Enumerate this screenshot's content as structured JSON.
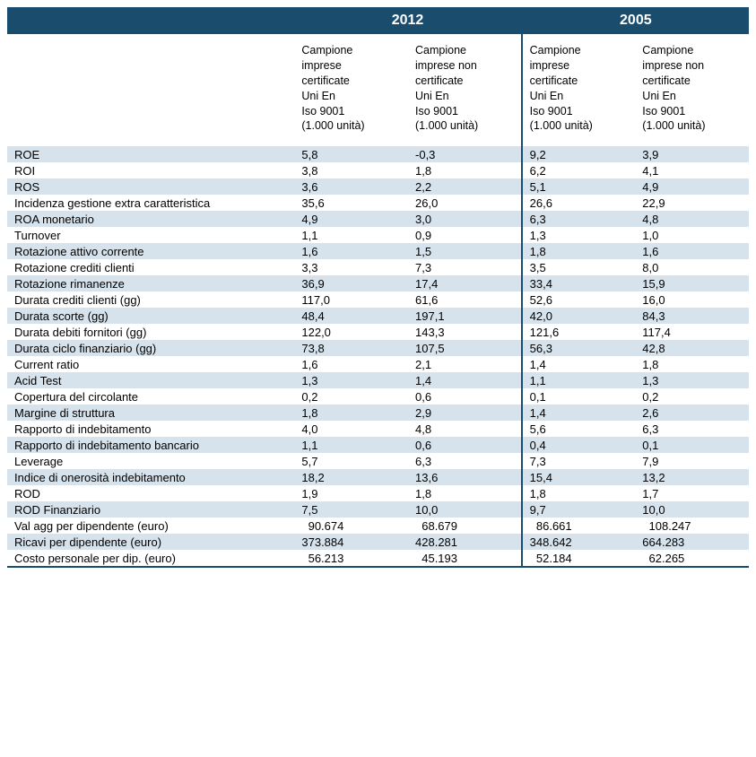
{
  "header": {
    "year1": "2012",
    "year2": "2005"
  },
  "subheaders": {
    "cert": "Campione\nimprese\ncertificate\nUni En\nIso 9001\n(1.000 unità)",
    "noncert": "Campione\nimprese non\ncertificate\nUni En\nIso 9001\n(1.000 unità)"
  },
  "colors": {
    "header_bg": "#1a4d6d",
    "header_text": "#ffffff",
    "stripe_bg": "#d6e3ed",
    "row_bg": "#ffffff",
    "text": "#000000"
  },
  "rows": [
    {
      "label": "ROE",
      "v2012c": "5,8",
      "v2012n": "-0,3",
      "v2005c": "9,2",
      "v2005n": "3,9",
      "stripe": true
    },
    {
      "label": "ROI",
      "v2012c": "3,8",
      "v2012n": "1,8",
      "v2005c": "6,2",
      "v2005n": "4,1",
      "stripe": false
    },
    {
      "label": "ROS",
      "v2012c": "3,6",
      "v2012n": "2,2",
      "v2005c": "5,1",
      "v2005n": "4,9",
      "stripe": true
    },
    {
      "label": "Incidenza gestione extra caratteristica",
      "v2012c": "35,6",
      "v2012n": "26,0",
      "v2005c": "26,6",
      "v2005n": "22,9",
      "stripe": false
    },
    {
      "label": "ROA monetario",
      "v2012c": "4,9",
      "v2012n": "3,0",
      "v2005c": "6,3",
      "v2005n": "4,8",
      "stripe": true
    },
    {
      "label": "Turnover",
      "v2012c": "1,1",
      "v2012n": "0,9",
      "v2005c": "1,3",
      "v2005n": "1,0",
      "stripe": false
    },
    {
      "label": "Rotazione attivo corrente",
      "v2012c": "1,6",
      "v2012n": "1,5",
      "v2005c": "1,8",
      "v2005n": "1,6",
      "stripe": true
    },
    {
      "label": "Rotazione crediti clienti",
      "v2012c": "3,3",
      "v2012n": "7,3",
      "v2005c": "3,5",
      "v2005n": "8,0",
      "stripe": false
    },
    {
      "label": "Rotazione rimanenze",
      "v2012c": "36,9",
      "v2012n": "17,4",
      "v2005c": "33,4",
      "v2005n": "15,9",
      "stripe": true
    },
    {
      "label": "Durata crediti clienti (gg)",
      "v2012c": "117,0",
      "v2012n": "61,6",
      "v2005c": "52,6",
      "v2005n": "16,0",
      "stripe": false
    },
    {
      "label": "Durata scorte (gg)",
      "v2012c": "48,4",
      "v2012n": "197,1",
      "v2005c": "42,0",
      "v2005n": "84,3",
      "stripe": true
    },
    {
      "label": "Durata debiti fornitori (gg)",
      "v2012c": "122,0",
      "v2012n": "143,3",
      "v2005c": "121,6",
      "v2005n": "117,4",
      "stripe": false
    },
    {
      "label": "Durata ciclo finanziario (gg)",
      "v2012c": "73,8",
      "v2012n": "107,5",
      "v2005c": "56,3",
      "v2005n": "42,8",
      "stripe": true
    },
    {
      "label": "Current ratio",
      "v2012c": "1,6",
      "v2012n": "2,1",
      "v2005c": "1,4",
      "v2005n": "1,8",
      "stripe": false
    },
    {
      "label": "Acid Test",
      "v2012c": "1,3",
      "v2012n": "1,4",
      "v2005c": "1,1",
      "v2005n": "1,3",
      "stripe": true
    },
    {
      "label": "Copertura del circolante",
      "v2012c": "0,2",
      "v2012n": "0,6",
      "v2005c": "0,1",
      "v2005n": "0,2",
      "stripe": false
    },
    {
      "label": "Margine di struttura",
      "v2012c": "1,8",
      "v2012n": "2,9",
      "v2005c": "1,4",
      "v2005n": "2,6",
      "stripe": true
    },
    {
      "label": "Rapporto di indebitamento",
      "v2012c": "4,0",
      "v2012n": "4,8",
      "v2005c": "5,6",
      "v2005n": "6,3",
      "stripe": false
    },
    {
      "label": "Rapporto di indebitamento bancario",
      "v2012c": "1,1",
      "v2012n": "0,6",
      "v2005c": "0,4",
      "v2005n": "0,1",
      "stripe": true
    },
    {
      "label": "Leverage",
      "v2012c": "5,7",
      "v2012n": "6,3",
      "v2005c": "7,3",
      "v2005n": "7,9",
      "stripe": false
    },
    {
      "label": "Indice di onerosità indebitamento",
      "v2012c": "18,2",
      "v2012n": "13,6",
      "v2005c": "15,4",
      "v2005n": "13,2",
      "stripe": true
    },
    {
      "label": "ROD",
      "v2012c": "1,9",
      "v2012n": "1,8",
      "v2005c": "1,8",
      "v2005n": "1,7",
      "stripe": false
    },
    {
      "label": "ROD Finanziario",
      "v2012c": "7,5",
      "v2012n": "10,0",
      "v2005c": "9,7",
      "v2005n": "10,0",
      "stripe": true
    },
    {
      "label": "Val agg per dipendente (euro)",
      "v2012c": "  90.674",
      "v2012n": "  68.679",
      "v2005c": "  86.661",
      "v2005n": "  108.247",
      "stripe": false
    },
    {
      "label": "Ricavi per dipendente (euro)",
      "v2012c": "373.884",
      "v2012n": "428.281",
      "v2005c": "348.642",
      "v2005n": "664.283",
      "stripe": true
    },
    {
      "label": "Costo personale per dip. (euro)",
      "v2012c": "  56.213",
      "v2012n": "  45.193",
      "v2005c": "  52.184",
      "v2005n": "  62.265",
      "stripe": false
    }
  ]
}
